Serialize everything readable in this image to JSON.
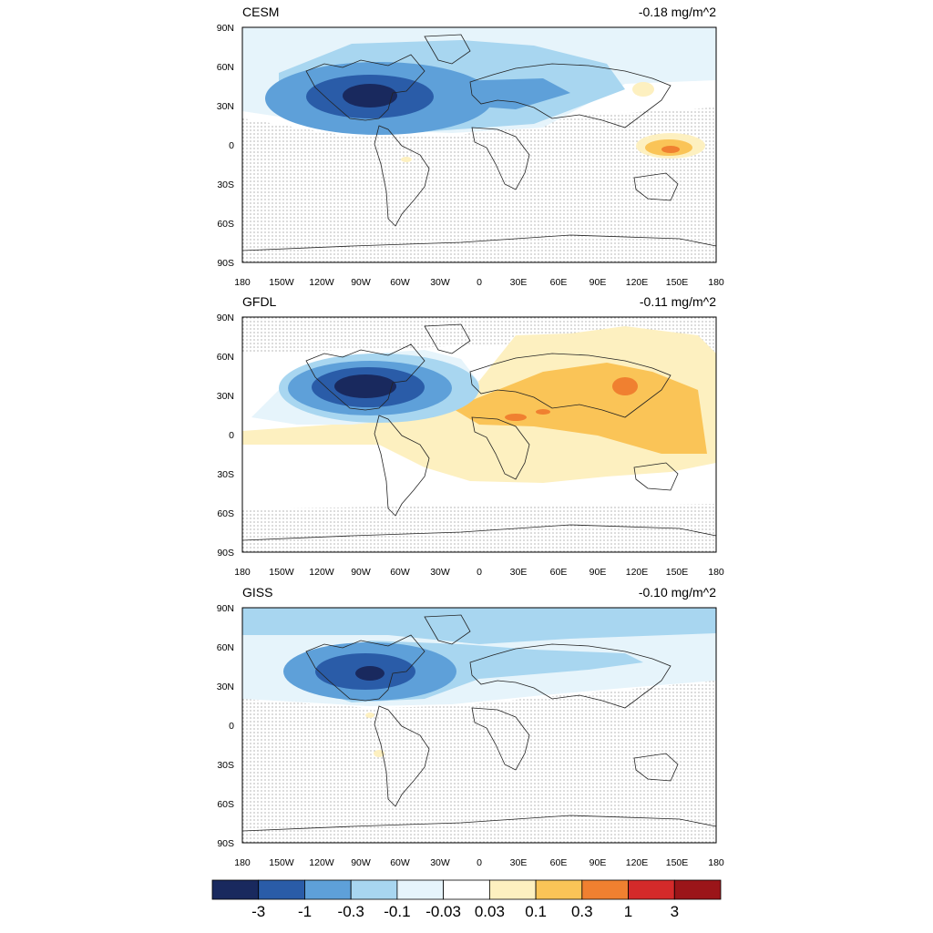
{
  "panels": [
    {
      "label": "CESM",
      "mean_text": "-0.18 mg/m^2",
      "field": "cesm"
    },
    {
      "label": "GFDL",
      "mean_text": "-0.11 mg/m^2",
      "field": "gfdl"
    },
    {
      "label": "GISS",
      "mean_text": "-0.10 mg/m^2",
      "field": "giss"
    }
  ],
  "lat_ticks": [
    "90N",
    "60N",
    "30N",
    "0",
    "30S",
    "60S",
    "90S"
  ],
  "lon_ticks": [
    "180",
    "150W",
    "120W",
    "90W",
    "60W",
    "30W",
    "0",
    "30E",
    "60E",
    "90E",
    "120E",
    "150E",
    "180"
  ],
  "colorbar": {
    "labels": [
      "-3",
      "-1",
      "-0.3",
      "-0.1",
      "-0.03",
      "0.03",
      "0.1",
      "0.3",
      "1",
      "3"
    ],
    "colors": [
      "#19295e",
      "#2a5ca8",
      "#5ea0d9",
      "#a8d6f0",
      "#e6f4fb",
      "#ffffff",
      "#fdf0c0",
      "#fac457",
      "#f08030",
      "#d42a2a",
      "#9b1519"
    ]
  },
  "chart_data": {
    "type": "heatmap",
    "variable_unit": "mg/m^2",
    "series": [
      {
        "name": "CESM",
        "global_mean": -0.18
      },
      {
        "name": "GFDL",
        "global_mean": -0.11
      },
      {
        "name": "GISS",
        "global_mean": -0.1
      }
    ],
    "x_ticks": [
      "180",
      "150W",
      "120W",
      "90W",
      "60W",
      "30W",
      "0",
      "30E",
      "60E",
      "90E",
      "120E",
      "150E",
      "180"
    ],
    "y_ticks": [
      "90N",
      "60N",
      "30N",
      "0",
      "30S",
      "60S",
      "90S"
    ],
    "xlim": [
      -180,
      180
    ],
    "ylim": [
      -90,
      90
    ],
    "contour_levels": [
      -3,
      -1,
      -0.3,
      -0.1,
      -0.03,
      0.03,
      0.1,
      0.3,
      1,
      3
    ],
    "stippling": "on"
  }
}
